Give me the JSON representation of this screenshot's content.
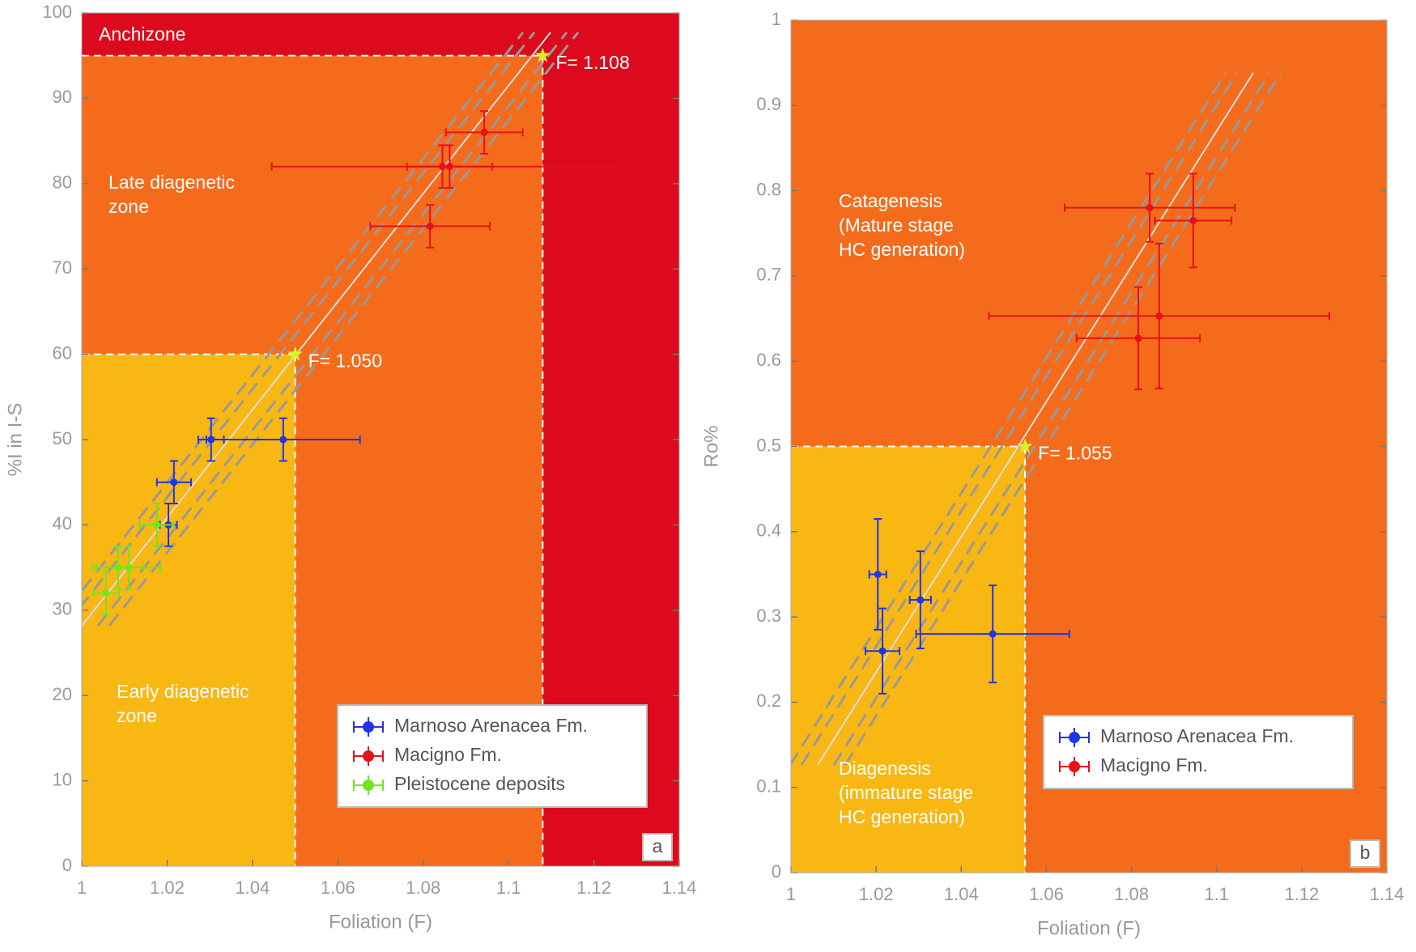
{
  "chart_data": [
    {
      "type": "scatter",
      "panel": "a",
      "x_label": "Foliation (F)",
      "y_label": "%I in I-S",
      "xlim": [
        1,
        1.14
      ],
      "xticks": [
        1,
        1.02,
        1.04,
        1.06,
        1.08,
        1.1,
        1.12,
        1.14
      ],
      "ylim": [
        0,
        100
      ],
      "yticks": [
        0,
        10,
        20,
        30,
        40,
        50,
        60,
        70,
        80,
        90,
        100
      ],
      "legend": "lower right",
      "zones": [
        {
          "lines": [
            "Anchizone"
          ],
          "color": "#dc0a1c"
        },
        {
          "lines": [
            "Late diagenetic",
            "zone"
          ],
          "color": "#f46b1c"
        },
        {
          "lines": [
            "Early diagenetic",
            "zone"
          ],
          "color": "#f9b714"
        }
      ],
      "annotations": [
        {
          "text": "F= 1.108",
          "x": 1.108,
          "y": 95
        },
        {
          "text": "F= 1.050",
          "x": 1.05,
          "y": 60
        }
      ],
      "series": [
        {
          "name": "Marnoso Arenacea Fm.",
          "color": "#1f35e8",
          "x": [
            1.0303,
            1.0472,
            1.0216,
            1.0203
          ],
          "values": [
            50,
            50,
            45,
            40
          ],
          "xerr": [
            0.003,
            0.018,
            0.004,
            0.002
          ],
          "yerr": [
            2.5,
            2.5,
            2.5,
            2.5
          ]
        },
        {
          "name": "Macigno Fm.",
          "color": "#e8101a",
          "x": [
            1.0943,
            1.0845,
            1.0862,
            1.0816
          ],
          "values": [
            86,
            82,
            82,
            75
          ],
          "xerr": [
            0.009,
            0.04,
            0.01,
            0.014
          ],
          "yerr": [
            2.5,
            2.5,
            2.5,
            2.5
          ]
        },
        {
          "name": "Pleistocene deposits",
          "color": "#6fe81a",
          "x": [
            1.0176,
            1.0085,
            1.011,
            1.0057
          ],
          "values": [
            40,
            35,
            35,
            32
          ],
          "xerr": [
            0.004,
            0.006,
            0.0075,
            0.003
          ],
          "yerr": [
            2.5,
            2.5,
            2.5,
            2.5
          ]
        }
      ]
    },
    {
      "type": "scatter",
      "panel": "b",
      "x_label": "Foliation (F)",
      "y_label": "Ro%",
      "xlim": [
        1,
        1.14
      ],
      "xticks": [
        1,
        1.02,
        1.04,
        1.06,
        1.08,
        1.1,
        1.12,
        1.14
      ],
      "ylim": [
        0,
        1
      ],
      "yticks": [
        0,
        0.1,
        0.2,
        0.3,
        0.4,
        0.5,
        0.6,
        0.7,
        0.8,
        0.9,
        1
      ],
      "legend": "lower right",
      "zones": [
        {
          "lines": [
            "Catagenesis",
            "(Mature stage",
            "HC generation)"
          ],
          "color": "#f46b1c"
        },
        {
          "lines": [
            "Diagenesis",
            "(immature stage",
            "HC generation)"
          ],
          "color": "#f9b714"
        }
      ],
      "annotations": [
        {
          "text": "F= 1.055",
          "x": 1.055,
          "y": 0.5
        }
      ],
      "series": [
        {
          "name": "Marnoso Arenacea Fm.",
          "color": "#1f35e8",
          "x": [
            1.0204,
            1.0215,
            1.0304,
            1.0474
          ],
          "values": [
            0.35,
            0.26,
            0.32,
            0.28
          ],
          "xerr": [
            0.002,
            0.004,
            0.0025,
            0.018
          ],
          "yerr": [
            0.065,
            0.05,
            0.057,
            0.057
          ]
        },
        {
          "name": "Macigno Fm.",
          "color": "#e8101a",
          "x": [
            1.0843,
            1.0945,
            1.0865,
            1.0816
          ],
          "values": [
            0.78,
            0.765,
            0.653,
            0.627
          ],
          "xerr": [
            0.02,
            0.009,
            0.04,
            0.0145
          ],
          "yerr": [
            0.04,
            0.055,
            0.085,
            0.06
          ]
        }
      ]
    }
  ]
}
